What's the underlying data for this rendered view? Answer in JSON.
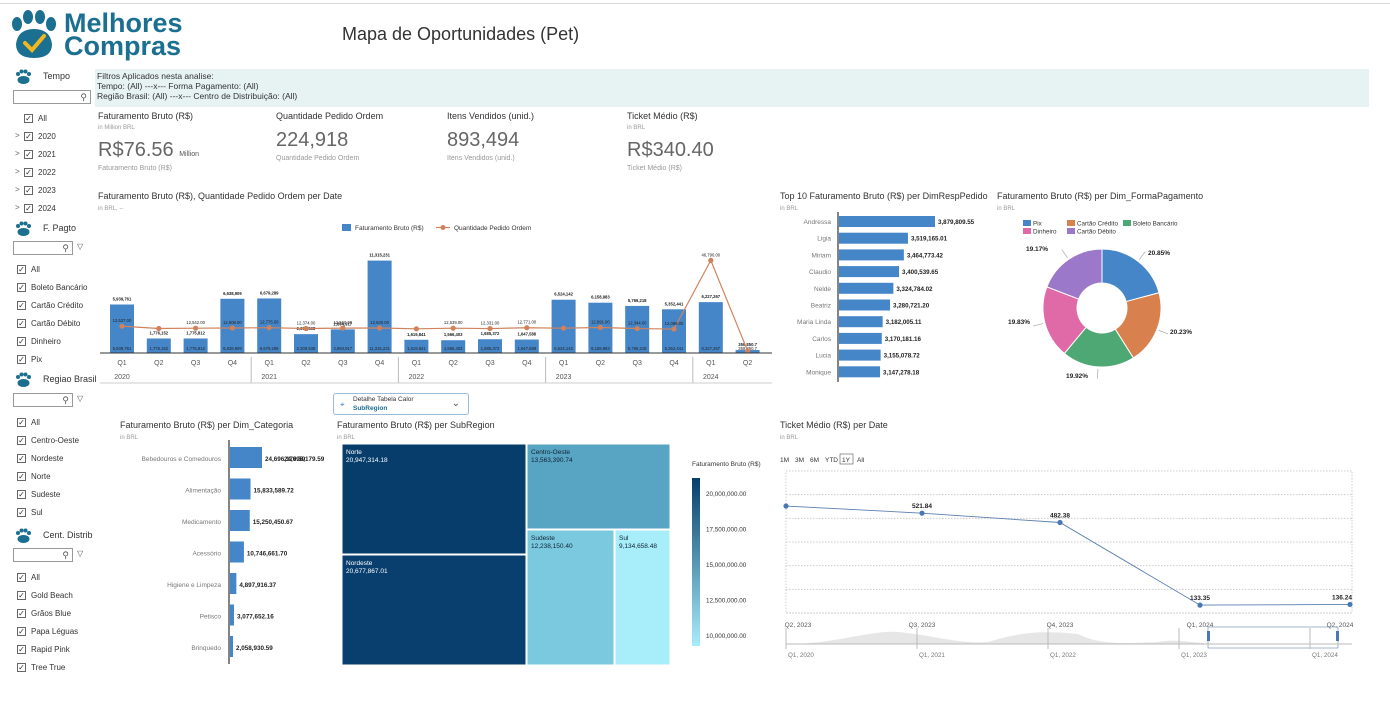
{
  "brand": {
    "line1": "Melhores",
    "line2": "Compras"
  },
  "page_title": "Mapa de Oportunidades (Pet)",
  "sidebar": {
    "tempo": {
      "title": "Tempo",
      "items": [
        {
          "label": "All",
          "checked": true,
          "expand": false
        },
        {
          "label": "2020",
          "checked": true,
          "expand": true
        },
        {
          "label": "2021",
          "checked": true,
          "expand": true
        },
        {
          "label": "2022",
          "checked": true,
          "expand": true
        },
        {
          "label": "2023",
          "checked": true,
          "expand": true
        },
        {
          "label": "2024",
          "checked": true,
          "expand": true
        }
      ]
    },
    "pagto": {
      "title": "F. Pagto",
      "items": [
        "All",
        "Boleto Bancário",
        "Cartão Crédito",
        "Cartão Débito",
        "Dinheiro",
        "Pix"
      ]
    },
    "regiao": {
      "title": "Regiao Brasil",
      "items": [
        "All",
        "Centro-Oeste",
        "Nordeste",
        "Norte",
        "Sudeste",
        "Sul"
      ]
    },
    "cent": {
      "title": "Cent. Distrib",
      "items": [
        "All",
        "Gold Beach",
        "Grãos Blue",
        "Papa Léguas",
        "Rapid Pink",
        "Tree True"
      ]
    }
  },
  "filters": {
    "line1": "Filtros Aplicados nesta analise:",
    "line2": "Tempo:  (All)   ---x--- Forma Pagamento: (All)",
    "line3": "Região Brasil: (All)  ---x--- Centro de Distribuição: (All)"
  },
  "kpis": [
    {
      "title": "Faturamento Bruto (R$)",
      "unit": "in Million BRL",
      "value": "R$76.56",
      "suffix": "Million",
      "caption": "Faturamento Bruto (R$)"
    },
    {
      "title": "Quantidade Pedido Ordem",
      "unit": "",
      "value": "224,918",
      "suffix": "",
      "caption": "Quantidade Pedido Ordem"
    },
    {
      "title": "Itens Vendidos (unid.)",
      "unit": "",
      "value": "893,494",
      "suffix": "",
      "caption": "Itens Vendidos (unid.)"
    },
    {
      "title": "Ticket Médio (R$)",
      "unit": "in BRL",
      "value": "R$340.40",
      "suffix": "",
      "caption": "Ticket Médio (R$)"
    }
  ],
  "chip": {
    "label": "Detalhe Tabela Calor",
    "value": "SubRegion"
  },
  "chart_data": [
    {
      "type": "bar",
      "title": "Faturamento Bruto (R$), Quantidade Pedido Ordem per Date",
      "subtitle": "in BRL, --",
      "categories": [
        "Q1",
        "Q2",
        "Q3",
        "Q4",
        "Q1",
        "Q2",
        "Q3",
        "Q4",
        "Q1",
        "Q2",
        "Q3",
        "Q4",
        "Q1",
        "Q2",
        "Q3",
        "Q4",
        "Q1",
        "Q2"
      ],
      "groups": [
        {
          "label": "2020",
          "span": 4
        },
        {
          "label": "2021",
          "span": 4
        },
        {
          "label": "2022",
          "span": 4
        },
        {
          "label": "2023",
          "span": 4
        },
        {
          "label": "2024",
          "span": 2
        }
      ],
      "series": [
        {
          "name": "Faturamento Bruto (R$)",
          "kind": "bar",
          "color": "#4586c9",
          "labels": [
            "5,939,761",
            "1,776,152",
            "1,775,812",
            "6,638,909",
            "6,679,289",
            "2,309,538",
            "2,894,917",
            "11,315,231",
            "1,619,841",
            "1,566,403",
            "1,685,372",
            "1,647,588",
            "6,524,142",
            "6,158,983",
            "5,766,218",
            "5,352,441",
            "6,227,267",
            "359,850.7"
          ],
          "values": [
            5939761,
            1776152,
            1775812,
            6638909,
            6679289,
            2309538,
            2894917,
            11315231,
            1619841,
            1566403,
            1685372,
            1647588,
            6524142,
            6158983,
            5766218,
            5352441,
            6227267,
            359850.7
          ]
        },
        {
          "name": "Quantidade Pedido Ordem",
          "kind": "line",
          "color": "#d0825c",
          "labels": [
            "13,537.00",
            "",
            "12,542.00",
            "12,608.00",
            "12,775.00",
            "12,374.00",
            "12,560.00",
            "12,630.00",
            "",
            "12,539.00",
            "12,331.00",
            "12,771.00",
            "",
            "12,891.00",
            "12,344.00",
            "12,089.00",
            "46,790.00",
            ""
          ],
          "values": [
            13537,
            12372,
            12542,
            12608,
            12775,
            12374,
            12560,
            12630,
            12209,
            12539,
            12331,
            12771,
            12520,
            12891,
            12344,
            12089,
            46790,
            1100
          ]
        }
      ],
      "ylim": [
        0,
        12000000
      ]
    },
    {
      "type": "bar",
      "title": "Top 10 Faturamento Bruto (R$) per DimRespPedido",
      "subtitle": "in BRL",
      "orientation": "horizontal",
      "color": "#4586c9",
      "categories": [
        "Andressa",
        "Ligia",
        "Miriam",
        "Claudio",
        "Nelde",
        "Beatriz",
        "Maria Linda",
        "Carlos",
        "Lucia",
        "Monique"
      ],
      "labels": [
        "3,879,809.55",
        "3,519,165.01",
        "3,464,773.42",
        "3,400,539.65",
        "3,324,784.02",
        "3,280,721.20",
        "3,182,005.11",
        "3,170,181.16",
        "3,155,078.72",
        "3,147,278.18"
      ],
      "values": [
        3879809.55,
        3519165.01,
        3464773.42,
        3400539.65,
        3324784.02,
        3280721.2,
        3182005.11,
        3170181.16,
        3155078.72,
        3147278.18
      ]
    },
    {
      "type": "pie",
      "title": "Faturamento Bruto (R$) per Dim_FormaPagamento",
      "subtitle": "in BRL",
      "categories": [
        "Pix",
        "Cartão Crédito",
        "Boleto Bancário",
        "Dinheiro",
        "Cartão Débito"
      ],
      "values": [
        20.85,
        20.23,
        19.92,
        19.83,
        19.17
      ],
      "labels": [
        "20.85%",
        "20.23%",
        "19.92%",
        "19.83%",
        "19.17%"
      ],
      "colors": [
        "#4586c9",
        "#d9804f",
        "#4ea874",
        "#e06aa8",
        "#9b78c9"
      ]
    },
    {
      "type": "bar",
      "title": "Faturamento Bruto (R$) per Dim_Categoria",
      "subtitle": "in BRL",
      "orientation": "horizontal",
      "color": "#4586c9",
      "categories": [
        "Bebedouros e Comedouros",
        "Alimentação",
        "Medicamento",
        "Acessório",
        "Higiene e Limpeza",
        "Petisco",
        "Brinquedo"
      ],
      "labels": [
        "24,696,179.59",
        "15,833,589.72",
        "15,250,450.67",
        "10,746,661.70",
        "4,897,916.37",
        "3,077,652.16",
        "2,058,930.59"
      ],
      "values": [
        24696179.59,
        15833589.72,
        15250450.67,
        10746661.7,
        4897916.37,
        3077652.16,
        2058930.59
      ]
    },
    {
      "type": "heatmap",
      "title": "Faturamento Bruto (R$) per SubRegion",
      "subtitle": "in BRL",
      "categories": [
        "Norte",
        "Nordeste",
        "Centro-Oeste",
        "Sudeste",
        "Sul"
      ],
      "labels": [
        "20,947,314.18",
        "20,677,867.01",
        "13,563,390.74",
        "12,238,150.40",
        "9,134,658.48"
      ],
      "values": [
        20947314.18,
        20677867.01,
        13563390.74,
        12238150.4,
        9134658.48
      ],
      "legend": {
        "title": "Faturamento Bruto (R$)",
        "ticks": [
          "20,000,000.00",
          "17,500,000.00",
          "15,000,000.00",
          "12,500,000.00",
          "10,000,000.00"
        ]
      }
    },
    {
      "type": "line",
      "title": "Ticket Médio (R$) per Date",
      "subtitle": "in BRL",
      "x": [
        "Q2, 2023",
        "Q3, 2023",
        "Q4, 2023",
        "Q1, 2024",
        "Q2, 2024"
      ],
      "values": [
        552,
        521.84,
        482.38,
        133.35,
        136.24
      ],
      "labels": [
        "",
        "521.84",
        "482.38",
        "133.35",
        "136.24"
      ],
      "yticks": [
        "700",
        "600",
        "500",
        "400",
        "300",
        "200",
        "100"
      ],
      "ylim": [
        100,
        700
      ],
      "range_buttons": [
        "1M",
        "3M",
        "6M",
        "YTD",
        "1Y",
        "All"
      ],
      "selected_range": "1Y",
      "navigator": [
        "Q1, 2020",
        "Q1, 2021",
        "Q1, 2022",
        "Q1, 2023",
        "Q1, 2024"
      ]
    }
  ]
}
